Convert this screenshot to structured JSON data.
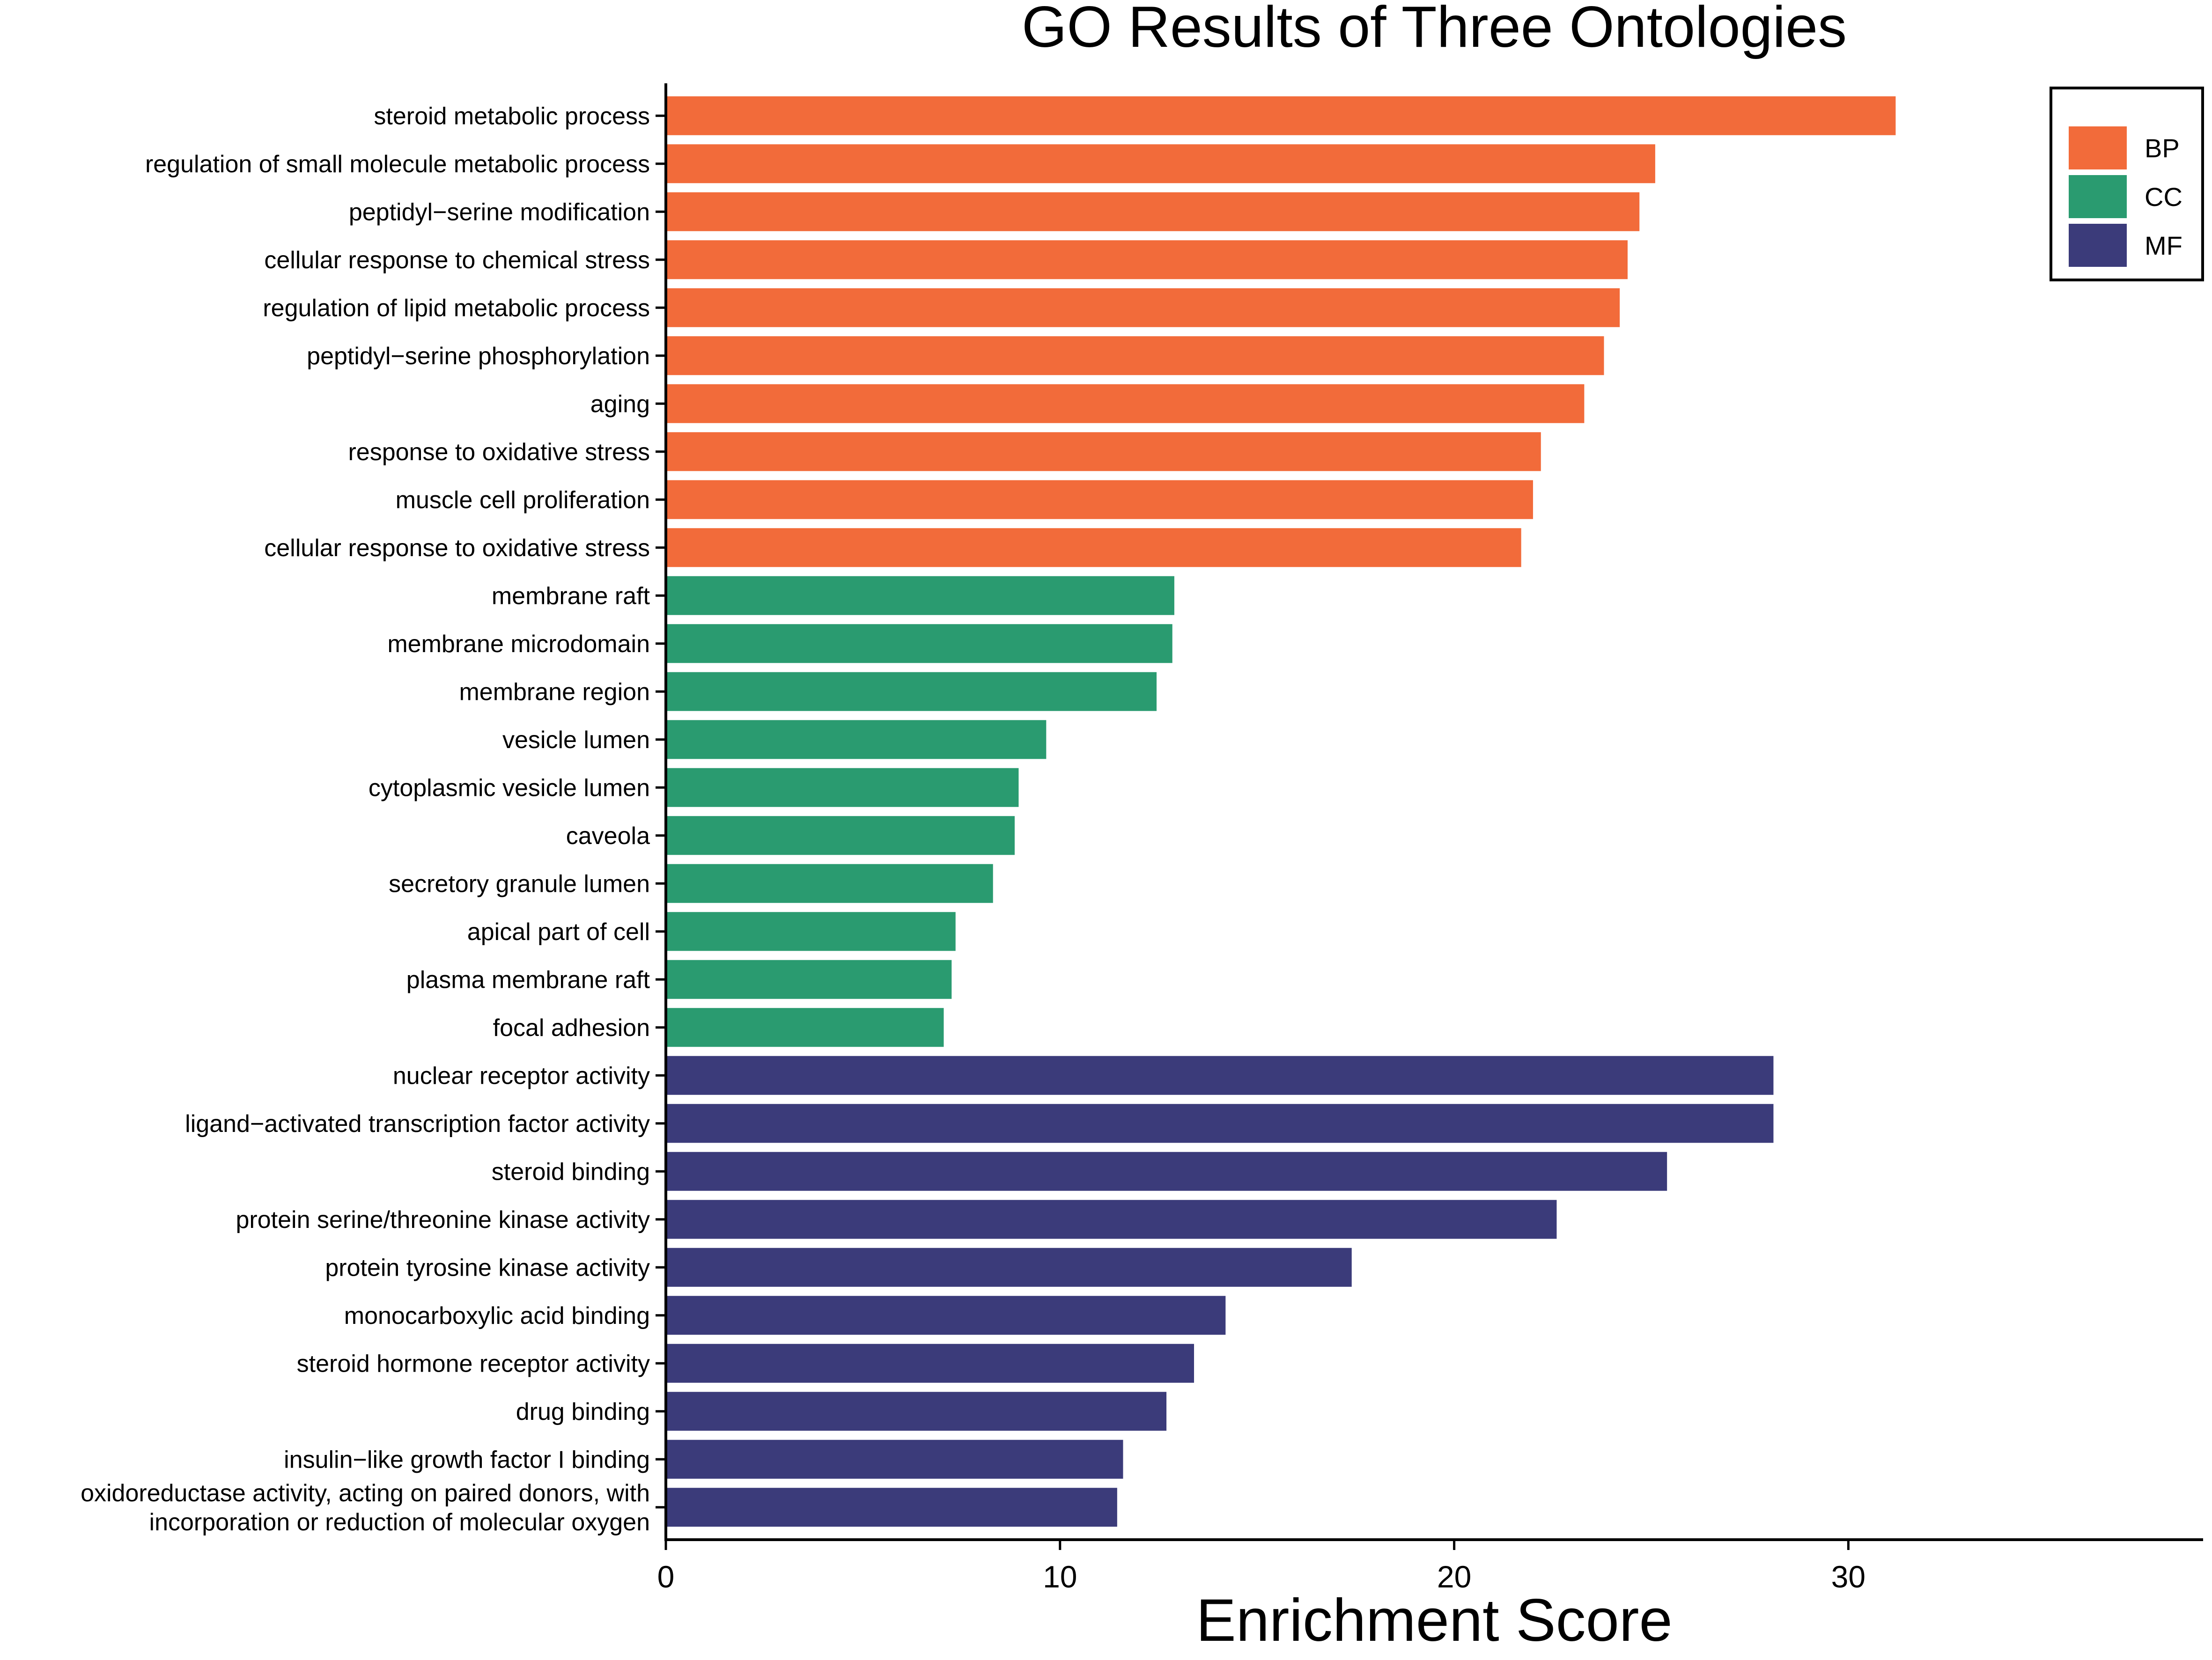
{
  "chart_data": {
    "type": "bar",
    "orientation": "horizontal",
    "title": "GO Results of Three Ontologies",
    "xlabel": "Enrichment Score",
    "ylabel": "",
    "xlim": [
      0,
      39
    ],
    "xticks": [
      0,
      10,
      20,
      30
    ],
    "grid": false,
    "legend_position": "top-right",
    "legend": [
      {
        "name": "BP",
        "color": "#F26B3A"
      },
      {
        "name": "CC",
        "color": "#2A9B70"
      },
      {
        "name": "MF",
        "color": "#3B3B7A"
      }
    ],
    "bars": [
      {
        "label": "steroid metabolic process",
        "value": 31.2,
        "category": "BP"
      },
      {
        "label": "regulation of small molecule metabolic process",
        "value": 25.1,
        "category": "BP"
      },
      {
        "label": "peptidyl−serine modification",
        "value": 24.7,
        "category": "BP"
      },
      {
        "label": "cellular response to chemical stress",
        "value": 24.4,
        "category": "BP"
      },
      {
        "label": "regulation of lipid metabolic process",
        "value": 24.2,
        "category": "BP"
      },
      {
        "label": "peptidyl−serine phosphorylation",
        "value": 23.8,
        "category": "BP"
      },
      {
        "label": "aging",
        "value": 23.3,
        "category": "BP"
      },
      {
        "label": "response to oxidative stress",
        "value": 22.2,
        "category": "BP"
      },
      {
        "label": "muscle cell proliferation",
        "value": 22.0,
        "category": "BP"
      },
      {
        "label": "cellular response to oxidative stress",
        "value": 21.7,
        "category": "BP"
      },
      {
        "label": "membrane raft",
        "value": 12.9,
        "category": "CC"
      },
      {
        "label": "membrane microdomain",
        "value": 12.85,
        "category": "CC"
      },
      {
        "label": "membrane region",
        "value": 12.45,
        "category": "CC"
      },
      {
        "label": "vesicle lumen",
        "value": 9.65,
        "category": "CC"
      },
      {
        "label": "cytoplasmic vesicle lumen",
        "value": 8.95,
        "category": "CC"
      },
      {
        "label": "caveola",
        "value": 8.85,
        "category": "CC"
      },
      {
        "label": "secretory granule lumen",
        "value": 8.3,
        "category": "CC"
      },
      {
        "label": "apical part of cell",
        "value": 7.35,
        "category": "CC"
      },
      {
        "label": "plasma membrane raft",
        "value": 7.25,
        "category": "CC"
      },
      {
        "label": "focal adhesion",
        "value": 7.05,
        "category": "CC"
      },
      {
        "label": "nuclear receptor activity",
        "value": 28.1,
        "category": "MF"
      },
      {
        "label": "ligand−activated transcription factor activity",
        "value": 28.1,
        "category": "MF"
      },
      {
        "label": "steroid binding",
        "value": 25.4,
        "category": "MF"
      },
      {
        "label": "protein serine/threonine kinase activity",
        "value": 22.6,
        "category": "MF"
      },
      {
        "label": "protein tyrosine kinase activity",
        "value": 17.4,
        "category": "MF"
      },
      {
        "label": "monocarboxylic acid binding",
        "value": 14.2,
        "category": "MF"
      },
      {
        "label": "steroid hormone receptor activity",
        "value": 13.4,
        "category": "MF"
      },
      {
        "label": "drug binding",
        "value": 12.7,
        "category": "MF"
      },
      {
        "label": "insulin−like growth factor I binding",
        "value": 11.6,
        "category": "MF"
      },
      {
        "label": "oxidoreductase activity, acting on paired donors, with\nincorporation or reduction of molecular oxygen",
        "value": 11.45,
        "category": "MF"
      }
    ]
  }
}
